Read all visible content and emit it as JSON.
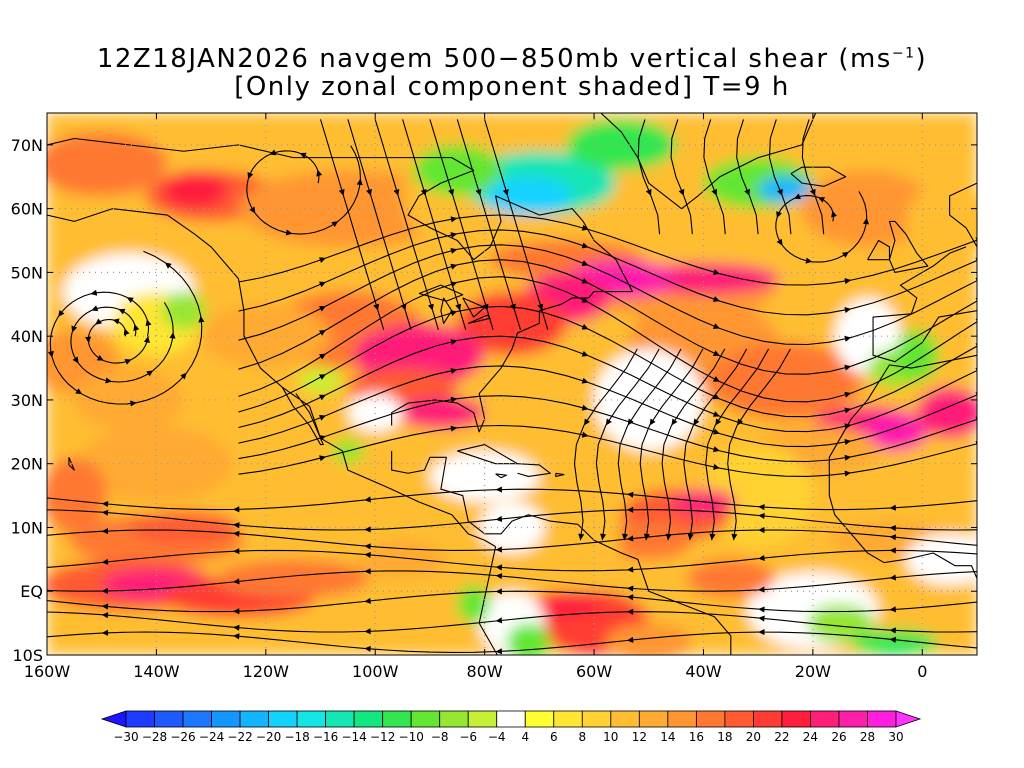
{
  "title": {
    "line1_prefix": "12Z18JAN2026 navgem 500−850mb vertical shear (ms",
    "line1_sup": "−1",
    "line1_suffix": ")",
    "line2": "[Only zonal component shaded] T=9 h"
  },
  "map": {
    "lon_range": [
      -160,
      10
    ],
    "lat_range": [
      -10,
      75
    ],
    "lat_ticks": [
      {
        "lat": 70,
        "label": "70N"
      },
      {
        "lat": 60,
        "label": "60N"
      },
      {
        "lat": 50,
        "label": "50N"
      },
      {
        "lat": 40,
        "label": "40N"
      },
      {
        "lat": 30,
        "label": "30N"
      },
      {
        "lat": 20,
        "label": "20N"
      },
      {
        "lat": 10,
        "label": "10N"
      },
      {
        "lat": 0,
        "label": "EQ"
      },
      {
        "lat": -10,
        "label": "10S"
      }
    ],
    "lon_ticks": [
      {
        "lon": -160,
        "label": "160W"
      },
      {
        "lon": -140,
        "label": "140W"
      },
      {
        "lon": -120,
        "label": "120W"
      },
      {
        "lon": -100,
        "label": "100W"
      },
      {
        "lon": -80,
        "label": "80W"
      },
      {
        "lon": -60,
        "label": "60W"
      },
      {
        "lon": -40,
        "label": "40W"
      },
      {
        "lon": -20,
        "label": "20W"
      },
      {
        "lon": 0,
        "label": "0"
      }
    ]
  },
  "colorbar": {
    "labels": [
      "−30",
      "−28",
      "−26",
      "−24",
      "−22",
      "−20",
      "−18",
      "−16",
      "−14",
      "−12",
      "−10",
      "−8",
      "−6",
      "−4",
      "4",
      "6",
      "8",
      "10",
      "12",
      "14",
      "16",
      "18",
      "20",
      "22",
      "24",
      "26",
      "28",
      "30"
    ],
    "colors": [
      "#1e3cff",
      "#1e5aff",
      "#1e78ff",
      "#1496ff",
      "#14b4ff",
      "#14d2ff",
      "#14e6e6",
      "#14e6b4",
      "#14e682",
      "#32e650",
      "#64e632",
      "#96e632",
      "#c8f032",
      "#ffffff",
      "#ffff32",
      "#ffe632",
      "#ffd232",
      "#ffbe32",
      "#ffaa32",
      "#ff9632",
      "#ff7832",
      "#ff5a32",
      "#ff3c32",
      "#ff1e3c",
      "#ff1e78",
      "#ff1eaa",
      "#ff1edc"
    ],
    "under_color": "#1e14ff",
    "over_color": "#ff32ff"
  }
}
